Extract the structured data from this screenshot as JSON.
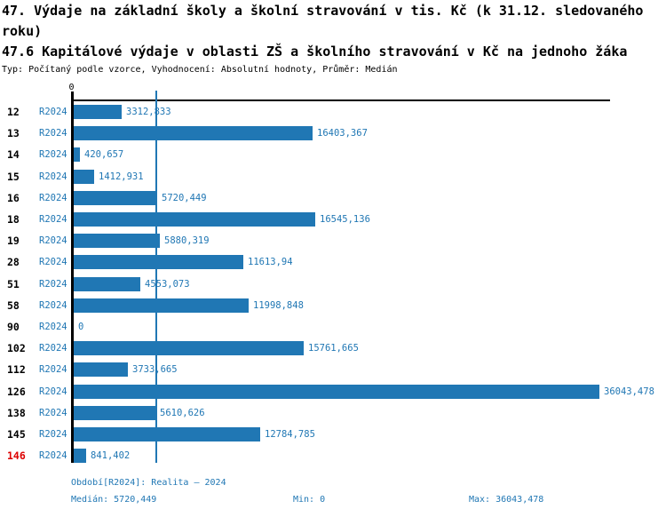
{
  "header": {
    "title": "47. Výdaje na základní školy a školní stravování v tis. Kč (k 31.12. sledovaného roku)",
    "subtitle": "47.6 Kapitálové výdaje v oblasti ZŠ a školního stravování v Kč na jednoho žáka",
    "meta": "Typ: Počítaný podle vzorce, Vyhodnocení: Absolutní hodnoty, Průměr: Medián"
  },
  "chart_data": {
    "type": "bar",
    "orientation": "horizontal",
    "period": "R2024",
    "categories": [
      "12",
      "13",
      "14",
      "15",
      "16",
      "18",
      "19",
      "28",
      "51",
      "58",
      "90",
      "102",
      "112",
      "126",
      "138",
      "145",
      "146"
    ],
    "values": [
      3312.833,
      16403.367,
      420.657,
      1412.931,
      5720.449,
      16545.136,
      5880.319,
      11613.94,
      4553.073,
      11998.848,
      0,
      15761.665,
      3733.665,
      36043.478,
      5610.626,
      12784.785,
      841.402
    ],
    "value_labels": [
      "3312,833",
      "16403,367",
      "420,657",
      "1412,931",
      "5720,449",
      "16545,136",
      "5880,319",
      "11613,94",
      "4553,073",
      "11998,848",
      "0",
      "15761,665",
      "3733,665",
      "36043,478",
      "5610,626",
      "12784,785",
      "841,402"
    ],
    "highlighted_category": "146",
    "xlim": [
      0,
      36043.478
    ],
    "median": 5720.449,
    "zero_tick_label": "0",
    "grid": false,
    "bar_color": "#2077b4",
    "highlight_color": "#dd0000",
    "xlabel": "",
    "ylabel": ""
  },
  "footer": {
    "period": "Období[R2024]: Realita – 2024",
    "median": "Medián: 5720,449",
    "min": "Min: 0",
    "max": "Max: 36043,478"
  }
}
